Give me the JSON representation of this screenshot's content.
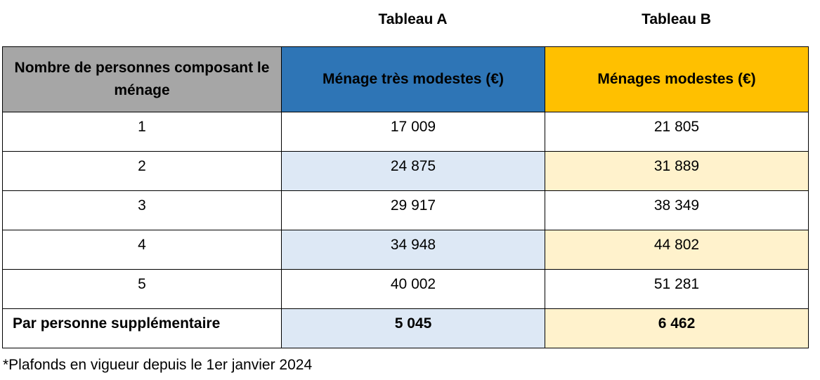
{
  "titles": {
    "table_a": "Tableau A",
    "table_b": "Tableau B"
  },
  "headers": {
    "persons": "Nombre de personnes composant le ménage",
    "tres_modestes": "Ménage très modestes (€)",
    "modestes": "Ménages modestes (€)"
  },
  "rows": [
    {
      "persons": "1",
      "a": "17 009",
      "b": "21 805"
    },
    {
      "persons": "2",
      "a": "24 875",
      "b": "31 889"
    },
    {
      "persons": "3",
      "a": "29 917",
      "b": "38 349"
    },
    {
      "persons": "4",
      "a": "34 948",
      "b": "44 802"
    },
    {
      "persons": "5",
      "a": "40 002",
      "b": "51 281"
    }
  ],
  "extra": {
    "label": "Par personne supplémentaire",
    "a": "5 045",
    "b": "6 462"
  },
  "footnote": "*Plafonds en vigueur depuis le 1er janvier 2024",
  "colors": {
    "header_persons": "#a6a6a6",
    "header_a": "#2e75b6",
    "header_b": "#ffc000",
    "alt_a": "#dde8f5",
    "alt_b": "#fff2cc"
  }
}
